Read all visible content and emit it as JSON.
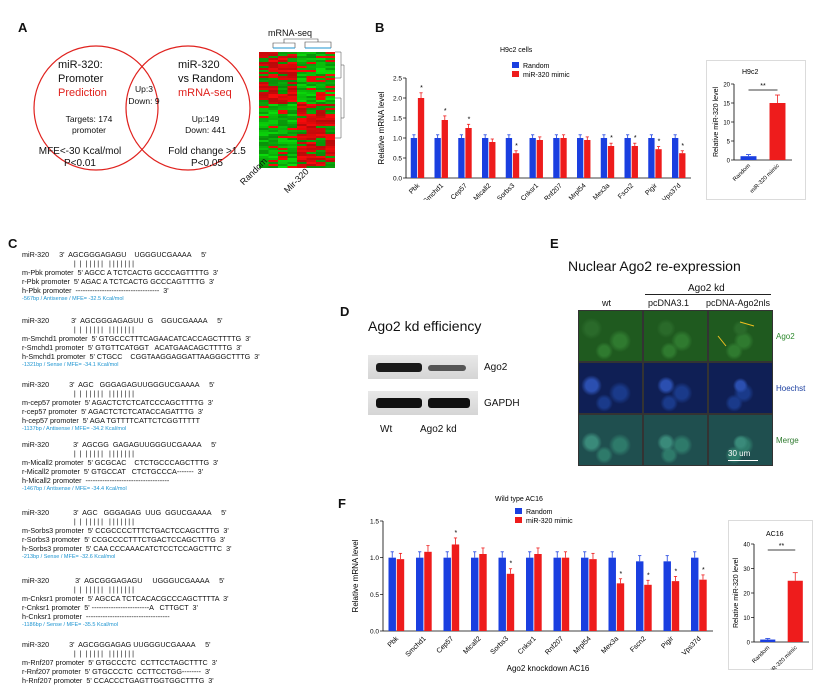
{
  "panels": {
    "A": "A",
    "B": "B",
    "C": "C",
    "D": "D",
    "E": "E",
    "F": "F"
  },
  "venn": {
    "left_title": "miR-320:",
    "left_line2": "Promoter",
    "left_red": "Prediction",
    "right_title": "miR-320",
    "right_line2": "vs Random",
    "right_red": "mRNA-seq",
    "overlap_up": "Up:3",
    "overlap_down": "Down: 9",
    "left_targets": "Targets: 174",
    "left_targets2": "promoter",
    "right_up": "Up:149",
    "right_down": "Down: 441",
    "left_crit1": "MFE<-30 Kcal/mol",
    "left_crit2": "P<0.01",
    "right_crit1": "Fold change >1.5",
    "right_crit2": "P<0.05"
  },
  "heatmap": {
    "title": "mRNA-seq",
    "label_random": "Random",
    "label_mir": "Mir-320"
  },
  "chart_data": [
    {
      "type": "bar",
      "title": "H9c2 cells",
      "ylabel": "Relative mRNA level",
      "ylim": [
        0,
        2.5
      ],
      "yticks": [
        "0.0",
        "0.5",
        "1.0",
        "1.5",
        "2.0",
        "2.5"
      ],
      "categories": [
        "Pbk",
        "Smchd1",
        "Cep57",
        "Micall2",
        "Sorbs3",
        "Cnksr1",
        "Rnf207",
        "Mrpl54",
        "Mex3a",
        "Fscn2",
        "Pigir",
        "Vps37d"
      ],
      "series": [
        {
          "name": "Random",
          "color": "#1a3fe0",
          "values": [
            1.0,
            1.0,
            1.0,
            1.0,
            1.0,
            1.0,
            1.0,
            1.0,
            1.0,
            1.0,
            1.0,
            1.0
          ]
        },
        {
          "name": "miR-320 mimic",
          "color": "#ee1c1c",
          "values": [
            2.0,
            1.45,
            1.25,
            0.9,
            0.62,
            0.95,
            1.0,
            0.95,
            0.8,
            0.8,
            0.72,
            0.62
          ]
        }
      ],
      "stars": [
        "*",
        "*",
        "*",
        "",
        "*",
        "",
        "",
        "",
        "*",
        "*",
        "*",
        "*"
      ]
    },
    {
      "type": "bar",
      "title": "H9c2",
      "ylabel": "Relative miR-320 level",
      "ylim": [
        0,
        20
      ],
      "yticks": [
        "0",
        "5",
        "10",
        "15",
        "20"
      ],
      "categories": [
        "Random",
        "miR-320 mimic"
      ],
      "values": [
        1,
        15
      ],
      "colors": [
        "#1a3fe0",
        "#ee1c1c"
      ],
      "sig": "**"
    },
    {
      "type": "bar",
      "title": "Wild type AC16",
      "ylabel": "Relative mRNA level",
      "xlabel": "Ago2 knockdown AC16",
      "ylim": [
        0,
        1.5
      ],
      "yticks": [
        "0.0",
        "0.5",
        "1.0",
        "1.5"
      ],
      "categories": [
        "Pbk",
        "Smchd1",
        "Cep57",
        "Micall2",
        "Sorbs3",
        "Cnksr1",
        "Rnf207",
        "Mrpl54",
        "Mex3a",
        "Fscn2",
        "Pigir",
        "Vps37d"
      ],
      "series": [
        {
          "name": "Random",
          "color": "#1a3fe0",
          "values": [
            1.0,
            1.0,
            1.0,
            1.0,
            1.0,
            1.0,
            1.0,
            1.0,
            1.0,
            0.95,
            0.95,
            1.0
          ]
        },
        {
          "name": "miR-320 mimic",
          "color": "#ee1c1c",
          "values": [
            0.98,
            1.08,
            1.18,
            1.05,
            0.78,
            1.05,
            1.0,
            0.98,
            0.65,
            0.63,
            0.68,
            0.7
          ]
        }
      ],
      "stars": [
        "",
        "",
        "*",
        "",
        "*",
        "",
        "",
        "",
        "*",
        "*",
        "*",
        "*"
      ]
    },
    {
      "type": "bar",
      "title": "AC16",
      "ylabel": "Relative miR-320 level",
      "ylim": [
        0,
        40
      ],
      "yticks": [
        "0",
        "10",
        "20",
        "30",
        "40"
      ],
      "categories": [
        "Random",
        "miR-320 mimic"
      ],
      "values": [
        1,
        25
      ],
      "colors": [
        "#1a3fe0",
        "#ee1c1c"
      ],
      "sig": "**"
    }
  ],
  "western": {
    "title": "Ago2 kd efficiency",
    "band1": "Ago2",
    "band2": "GAPDH",
    "lane1": "Wt",
    "lane2": "Ago2 kd"
  },
  "micro": {
    "title": "Nuclear Ago2 re-expression",
    "col_wt": "wt",
    "col_group": "Ago2 kd",
    "col2": "pcDNA3.1",
    "col3": "pcDNA-Ago2nls",
    "row1": "Ago2",
    "row2": "Hoechst",
    "row3": "Merge",
    "scale": "30 um",
    "colors": {
      "green": "#2e8a2e",
      "blue": "#1b3fa0",
      "merge": "#2e7a7a"
    }
  },
  "seq": [
    {
      "header": "miR-320     3'  AGCGGGAGAGU    UGGGUCGAAAA     5'",
      "m": "m-Pbk promoter  5' AGCC A TCTCACTG GCCCAGTTTTG  3'",
      "r": "r-Pbk promoter  5' AGAC A TCTCACTG GCCCAGTTTTG  3'",
      "h": "h-Pbk promoter  -----------------------------------  3'",
      "cap": "-567bp / Antisense / MFE= -32.5 Kcal/mol"
    },
    {
      "header": "miR-320           3'  AGCGGGAGAGUU  G    GGUCGAAAA     5'",
      "m": "m-Smchd1 promoter  5' GTGCCCTTTCAGAACATCACCAGCTTTTG  3'",
      "r": "r-Smchd1 promoter  5' GTGTTCATGGT   ACATGAACAGCTTTTG  3'",
      "h": "h-Smchd1 promoter  5' CTGCC    CGGTAAGGAGGATTAAGGGCTTTG  3'",
      "cap": "-1321bp / Sense / MFE= -34.1 Kcal/mol"
    },
    {
      "header": "miR-320          3'  AGC   GGGAGAGUUGGGUCGAAAA     5'",
      "m": "m-cep57 promoter  5' AGACTCTCTCATCCCAGCTTTTG  3'",
      "r": "r-cep57 promoter  5' AGACTCTCTCATACCAGATTTG  3'",
      "h": "h-cep57 promoter  5' AGA TGTTTTCATTCTCGGTTTTT",
      "cap": "-1137bp / Antisense / MFE= -34.2 Kcal/mol"
    },
    {
      "header": "miR-320            3'  AGCGG  GAGAGUUGGGUCGAAAA     5'",
      "m": "m-Micall2 promoter  5' GCGCAC    CTCTGCCCAGCTTTG  3'",
      "r": "r-Micall2 promoter  5' GTGCCAT   CTCTGCCCA-------  3'",
      "h": "h-Micall2 promoter  -----------------------------------",
      "cap": "-1467bp / Antisense / MFE= -34.4 Kcal/mol"
    },
    {
      "header": "miR-320            3'  AGC   GGGAGAG  UUG  GGUCGAAAA     5'",
      "m": "m-Sorbs3 promoter  5' CCGCCCCTTTCTGACTCCAGCTTTG  3'",
      "r": "r-Sorbs3 promoter  5' CCGCCCCTTTCTGACTCCAGCTTTG  3'",
      "h": "h-Sorbs3 promoter  5' CAA CCCAAACATCTCCTCCAGCTTTC  3'",
      "cap": "-213bp / Sense / MFE= -32.6 Kcal/mol"
    },
    {
      "header": "miR-320             3'  AGCGGGAGAGU     UGGGUCGAAAA     5'",
      "m": "m-Cnksr1 promoter  5' AGCCA TCTCACACGCCCAGCTTTTA  3'",
      "r": "r-Cnksr1 promoter  5' ------------------------A   CTTGCT  3'",
      "h": "h-Cnksr1 promoter  -----------------------------------",
      "cap": "-1186bp / Sense / MFE= -35.5 Kcal/mol"
    },
    {
      "header": "miR-320          3'  AGCGGGAGAG UUGGGUCGAAAA     5'",
      "m": "m-Rnf207 promoter  5' GTGCCCTC  CCTTCCTAGCTTTC  3'",
      "r": "r-Rnf207 promoter  5' GTGCCCTC  CCTTCCTGG--------  3'",
      "h": "h-Rnf207 promoter  5' CCACCCTGAGTTGGTGGCTTTG  3'",
      "cap": ""
    }
  ]
}
